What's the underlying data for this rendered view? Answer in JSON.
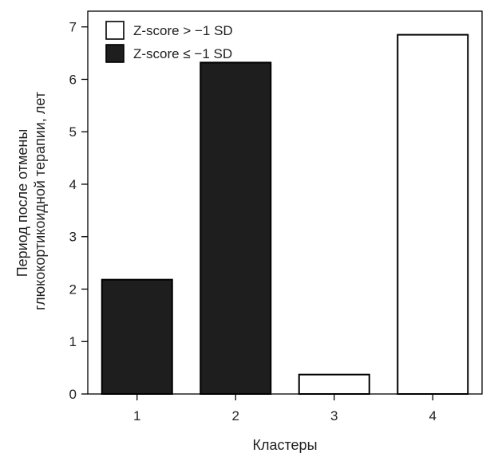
{
  "chart_data": {
    "type": "bar",
    "categories": [
      "1",
      "2",
      "3",
      "4"
    ],
    "values": [
      2.18,
      6.32,
      0.37,
      6.85
    ],
    "bar_group": [
      "Z-score ≤ −1 SD",
      "Z-score ≤ −1 SD",
      "Z-score > −1 SD",
      "Z-score > −1 SD"
    ],
    "series": [
      {
        "name": "Z-score > −1 SD",
        "color": "#ffffff",
        "stroke": "#000000"
      },
      {
        "name": "Z-score ≤ −1 SD",
        "color": "#1e1e1e",
        "stroke": "#000000"
      }
    ],
    "xlabel": "Кластеры",
    "ylabel_lines": [
      "Период после отмены",
      "глюкокортикоидной терапии, лет"
    ],
    "ylim": [
      0,
      7.3
    ],
    "yticks": [
      "0",
      "1",
      "2",
      "3",
      "4",
      "5",
      "6",
      "7"
    ],
    "grid": false,
    "legend_position": "top-left"
  }
}
